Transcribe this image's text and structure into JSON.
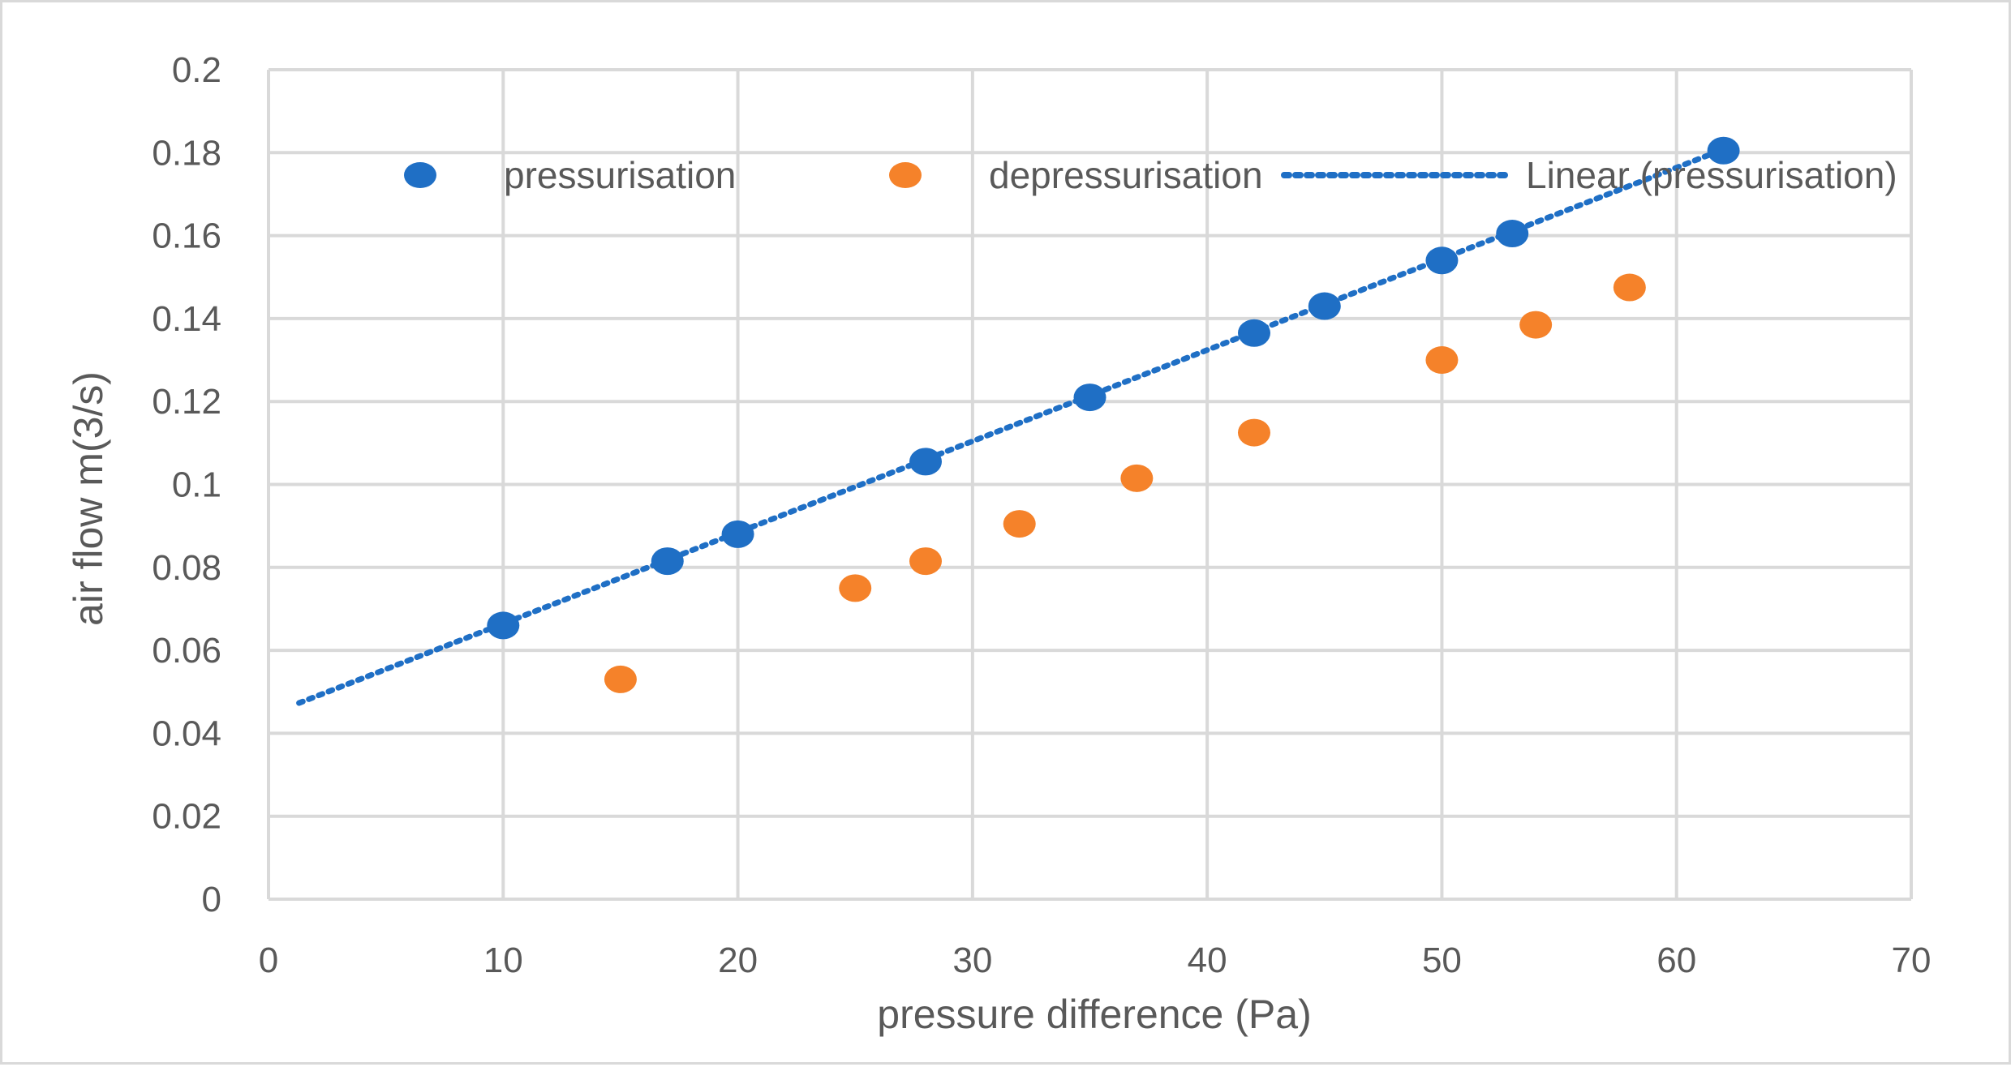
{
  "chart_data": {
    "type": "scatter",
    "title": "",
    "xlabel": "pressure difference (Pa)",
    "ylabel": "air flow m(3/s)",
    "xlim": [
      0,
      70
    ],
    "ylim": [
      0,
      0.2
    ],
    "xticks": [
      0,
      10,
      20,
      30,
      40,
      50,
      60,
      70
    ],
    "yticks": [
      0,
      0.02,
      0.04,
      0.06,
      0.08,
      0.1,
      0.12,
      0.14,
      0.16,
      0.18,
      0.2
    ],
    "ytick_labels": [
      "0",
      "0.02",
      "0.04",
      "0.06",
      "0.08",
      "0.1",
      "0.12",
      "0.14",
      "0.16",
      "0.18",
      "0.2"
    ],
    "grid": true,
    "legend_position": "top",
    "series": [
      {
        "name": "pressurisation",
        "color": "#1f6fc5",
        "x": [
          10,
          17,
          20,
          28,
          35,
          42,
          45,
          50,
          53,
          62
        ],
        "y": [
          0.066,
          0.0815,
          0.088,
          0.1055,
          0.121,
          0.1365,
          0.143,
          0.154,
          0.1605,
          0.1805
        ]
      },
      {
        "name": "depressurisation",
        "color": "#f5822a",
        "x": [
          15,
          25,
          28,
          32,
          37,
          42,
          50,
          54,
          58
        ],
        "y": [
          0.053,
          0.075,
          0.0815,
          0.0905,
          0.1015,
          0.1125,
          0.13,
          0.1385,
          0.1475
        ]
      }
    ],
    "trendline": {
      "name": "Linear (pressurisation)",
      "color": "#1f6fc5",
      "style": "dotted",
      "x_start": 1.3,
      "y_start": 0.0473,
      "x_end": 62,
      "y_end": 0.1808
    }
  }
}
